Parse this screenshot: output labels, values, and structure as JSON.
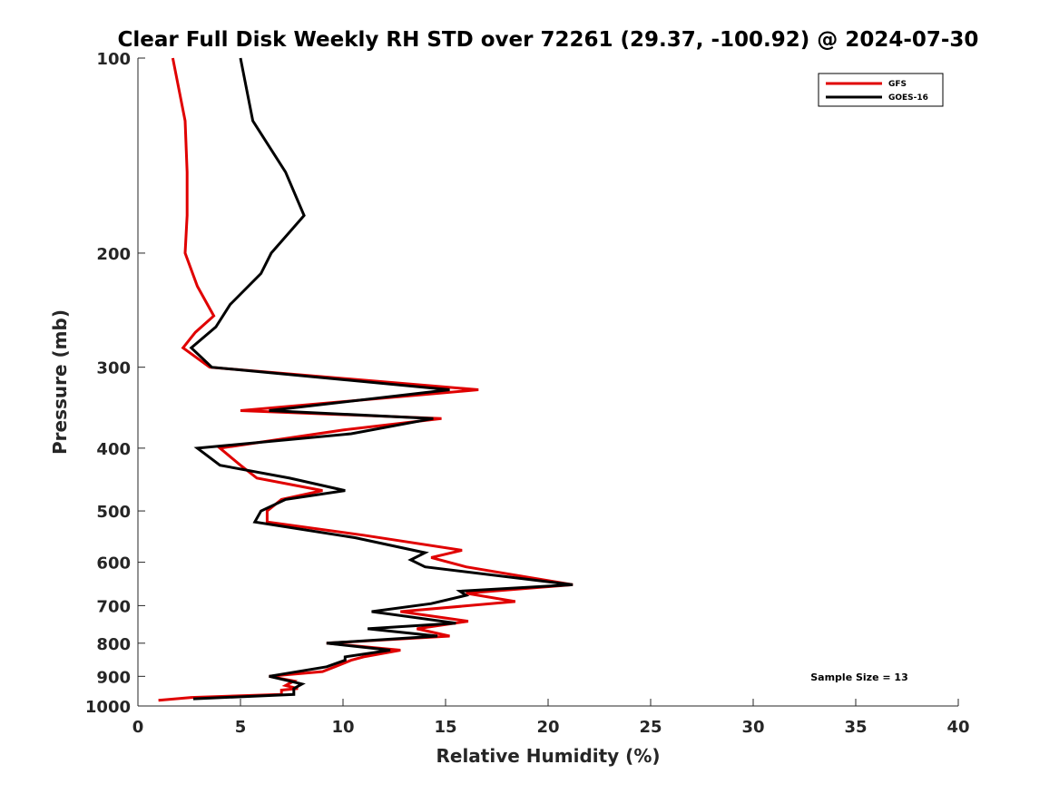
{
  "chart_data": {
    "type": "line",
    "title": "Clear Full Disk Weekly RH STD over 72261 (29.37, -100.92) @ 2024-07-30",
    "xlabel": "Relative Humidity (%)",
    "ylabel": "Pressure (mb)",
    "xlim": [
      0,
      40
    ],
    "ylim": [
      100,
      1000
    ],
    "y_scale": "log",
    "y_reversed": true,
    "x_ticks": [
      0,
      5,
      10,
      15,
      20,
      25,
      30,
      35,
      40
    ],
    "x_tick_labels": [
      "0",
      "5",
      "10",
      "15",
      "20",
      "25",
      "30",
      "35",
      "40"
    ],
    "y_ticks": [
      100,
      200,
      300,
      400,
      500,
      600,
      700,
      800,
      900,
      1000
    ],
    "y_tick_labels": [
      "100",
      "200",
      "300",
      "400",
      "500",
      "600",
      "700",
      "800",
      "900",
      "1000"
    ],
    "grid": false,
    "legend_position": "top-right",
    "annotation": "Sample Size = 13",
    "series": [
      {
        "name": "GFS",
        "color": "#e00000",
        "points": [
          [
            1.7,
            100
          ],
          [
            2.3,
            125
          ],
          [
            2.4,
            150
          ],
          [
            2.4,
            175
          ],
          [
            2.3,
            200
          ],
          [
            2.9,
            225
          ],
          [
            3.7,
            250
          ],
          [
            2.8,
            265
          ],
          [
            2.2,
            280
          ],
          [
            3.5,
            300
          ],
          [
            16.6,
            325
          ],
          [
            5.0,
            350
          ],
          [
            14.8,
            360
          ],
          [
            10.0,
            375
          ],
          [
            4.0,
            400
          ],
          [
            5.0,
            425
          ],
          [
            5.8,
            445
          ],
          [
            9.0,
            465
          ],
          [
            7.0,
            480
          ],
          [
            6.3,
            500
          ],
          [
            6.3,
            520
          ],
          [
            11.0,
            545
          ],
          [
            15.8,
            575
          ],
          [
            14.3,
            590
          ],
          [
            16.0,
            610
          ],
          [
            21.2,
            650
          ],
          [
            16.0,
            670
          ],
          [
            18.4,
            690
          ],
          [
            12.8,
            715
          ],
          [
            16.1,
            740
          ],
          [
            13.6,
            760
          ],
          [
            15.2,
            780
          ],
          [
            9.2,
            800
          ],
          [
            12.8,
            820
          ],
          [
            11.0,
            840
          ],
          [
            10.4,
            850
          ],
          [
            9.6,
            870
          ],
          [
            9.0,
            885
          ],
          [
            6.4,
            900
          ],
          [
            7.6,
            915
          ],
          [
            7.2,
            930
          ],
          [
            7.8,
            940
          ],
          [
            7.0,
            945
          ],
          [
            7.0,
            960
          ],
          [
            2.6,
            970
          ],
          [
            1.0,
            980
          ]
        ]
      },
      {
        "name": "GOES-16",
        "color": "#000000",
        "points": [
          [
            5.0,
            100
          ],
          [
            5.6,
            125
          ],
          [
            7.2,
            150
          ],
          [
            8.1,
            175
          ],
          [
            6.5,
            200
          ],
          [
            6.0,
            215
          ],
          [
            4.5,
            240
          ],
          [
            3.8,
            260
          ],
          [
            2.6,
            280
          ],
          [
            3.6,
            300
          ],
          [
            15.2,
            325
          ],
          [
            6.4,
            350
          ],
          [
            14.4,
            360
          ],
          [
            10.4,
            380
          ],
          [
            2.9,
            400
          ],
          [
            4.0,
            425
          ],
          [
            7.4,
            445
          ],
          [
            10.1,
            465
          ],
          [
            7.2,
            480
          ],
          [
            6.0,
            500
          ],
          [
            5.7,
            520
          ],
          [
            10.6,
            550
          ],
          [
            14.0,
            580
          ],
          [
            13.3,
            595
          ],
          [
            14.0,
            610
          ],
          [
            21.2,
            650
          ],
          [
            15.7,
            665
          ],
          [
            16.0,
            675
          ],
          [
            14.3,
            695
          ],
          [
            11.4,
            715
          ],
          [
            15.5,
            745
          ],
          [
            11.2,
            760
          ],
          [
            14.6,
            780
          ],
          [
            9.2,
            800
          ],
          [
            12.3,
            820
          ],
          [
            10.1,
            840
          ],
          [
            10.1,
            850
          ],
          [
            9.2,
            870
          ],
          [
            6.4,
            900
          ],
          [
            7.4,
            915
          ],
          [
            8.0,
            925
          ],
          [
            7.6,
            940
          ],
          [
            7.6,
            960
          ],
          [
            2.7,
            975
          ]
        ]
      }
    ]
  }
}
